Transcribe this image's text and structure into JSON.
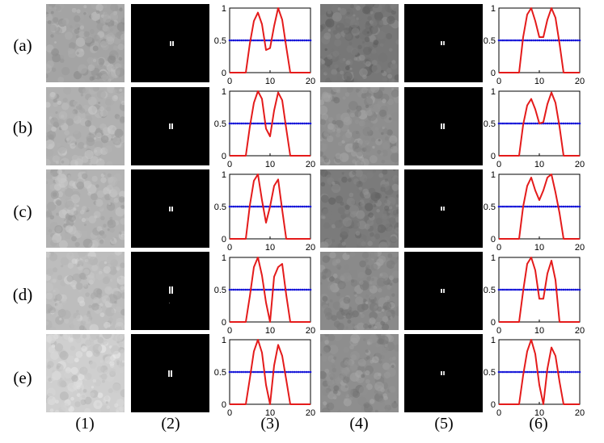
{
  "row_labels": [
    "(a)",
    "(b)",
    "(c)",
    "(d)",
    "(e)"
  ],
  "column_labels": [
    "(1)",
    "(2)",
    "(3)",
    "(4)",
    "(5)",
    "(6)"
  ],
  "colors": {
    "profile": "#e41b1b",
    "threshold": "#1515d8",
    "axes": "#000000"
  },
  "speckle_tones": {
    "column_1": [
      "#a4a4a4",
      "#b0b0b0",
      "#b2b2b2",
      "#bdbdbd",
      "#cfcfcf"
    ],
    "column_4": [
      "#777777",
      "#8e8e8e",
      "#7b7b7b",
      "#8a8a8a",
      "#8e8e8e"
    ]
  },
  "chart_data": [
    {
      "type": "line",
      "panel": "(a)(3)",
      "xlim": [
        0,
        20
      ],
      "ylim": [
        0,
        1
      ],
      "xticks": [
        "0",
        "10",
        "20"
      ],
      "yticks": [
        "0",
        "0.5",
        "1"
      ],
      "series": [
        {
          "x": [
            0,
            1,
            2,
            3,
            4,
            5,
            6,
            7,
            8,
            9,
            10,
            11,
            12,
            13,
            14,
            15,
            16,
            17,
            18,
            19,
            20
          ],
          "y": [
            0,
            0,
            0,
            0,
            0,
            0.45,
            0.8,
            0.93,
            0.75,
            0.35,
            0.38,
            0.72,
            1.0,
            0.82,
            0.4,
            0,
            0,
            0,
            0,
            0,
            0
          ]
        },
        {
          "x": [
            0,
            20
          ],
          "y": [
            0.5,
            0.5
          ]
        }
      ]
    },
    {
      "type": "line",
      "panel": "(a)(6)",
      "xlim": [
        0,
        20
      ],
      "ylim": [
        0,
        1
      ],
      "xticks": [
        "0",
        "10",
        "20"
      ],
      "yticks": [
        "0",
        "0.5",
        "1"
      ],
      "series": [
        {
          "x": [
            0,
            1,
            2,
            3,
            4,
            5,
            6,
            7,
            8,
            9,
            10,
            11,
            12,
            13,
            14,
            15,
            16,
            17,
            18,
            19,
            20
          ],
          "y": [
            0,
            0,
            0,
            0,
            0,
            0,
            0.55,
            0.9,
            1.0,
            0.8,
            0.55,
            0.55,
            0.82,
            1.0,
            0.85,
            0.45,
            0,
            0,
            0,
            0,
            0
          ]
        },
        {
          "x": [
            0,
            20
          ],
          "y": [
            0.5,
            0.5
          ]
        }
      ]
    },
    {
      "type": "line",
      "panel": "(b)(3)",
      "xlim": [
        0,
        20
      ],
      "ylim": [
        0,
        1
      ],
      "xticks": [
        "0",
        "10",
        "20"
      ],
      "yticks": [
        "0",
        "0.5",
        "1"
      ],
      "series": [
        {
          "x": [
            0,
            1,
            2,
            3,
            4,
            5,
            6,
            7,
            8,
            9,
            10,
            11,
            12,
            13,
            14,
            15,
            16,
            17,
            18,
            19,
            20
          ],
          "y": [
            0,
            0,
            0,
            0,
            0,
            0.45,
            0.82,
            1.0,
            0.88,
            0.42,
            0.3,
            0.7,
            0.98,
            0.86,
            0.42,
            0,
            0,
            0,
            0,
            0,
            0
          ]
        },
        {
          "x": [
            0,
            20
          ],
          "y": [
            0.5,
            0.5
          ]
        }
      ]
    },
    {
      "type": "line",
      "panel": "(b)(6)",
      "xlim": [
        0,
        20
      ],
      "ylim": [
        0,
        1
      ],
      "xticks": [
        "0",
        "10",
        "20"
      ],
      "yticks": [
        "0",
        "0.5",
        "1"
      ],
      "series": [
        {
          "x": [
            0,
            1,
            2,
            3,
            4,
            5,
            6,
            7,
            8,
            9,
            10,
            11,
            12,
            13,
            14,
            15,
            16,
            17,
            18,
            19,
            20
          ],
          "y": [
            0,
            0,
            0,
            0,
            0,
            0,
            0.48,
            0.78,
            0.88,
            0.72,
            0.5,
            0.52,
            0.8,
            0.98,
            0.82,
            0.45,
            0,
            0,
            0,
            0,
            0
          ]
        },
        {
          "x": [
            0,
            20
          ],
          "y": [
            0.5,
            0.5
          ]
        }
      ]
    },
    {
      "type": "line",
      "panel": "(c)(3)",
      "xlim": [
        0,
        20
      ],
      "ylim": [
        0,
        1
      ],
      "xticks": [
        "0",
        "10",
        "20"
      ],
      "yticks": [
        "0",
        "0.5",
        "1"
      ],
      "series": [
        {
          "x": [
            0,
            1,
            2,
            3,
            4,
            5,
            6,
            7,
            8,
            9,
            10,
            11,
            12,
            13,
            14,
            15,
            16,
            17,
            18,
            19,
            20
          ],
          "y": [
            0,
            0,
            0,
            0,
            0,
            0.52,
            0.9,
            1.0,
            0.6,
            0.25,
            0.5,
            0.82,
            0.92,
            0.45,
            0,
            0,
            0,
            0,
            0,
            0,
            0
          ]
        },
        {
          "x": [
            0,
            20
          ],
          "y": [
            0.5,
            0.5
          ]
        }
      ]
    },
    {
      "type": "line",
      "panel": "(c)(6)",
      "xlim": [
        0,
        20
      ],
      "ylim": [
        0,
        1
      ],
      "xticks": [
        "0",
        "10",
        "20"
      ],
      "yticks": [
        "0",
        "0.5",
        "1"
      ],
      "series": [
        {
          "x": [
            0,
            1,
            2,
            3,
            4,
            5,
            6,
            7,
            8,
            9,
            10,
            11,
            12,
            13,
            14,
            15,
            16,
            17,
            18,
            19,
            20
          ],
          "y": [
            0,
            0,
            0,
            0,
            0,
            0,
            0.5,
            0.82,
            0.95,
            0.75,
            0.6,
            0.75,
            0.95,
            1.0,
            0.72,
            0.4,
            0,
            0,
            0,
            0,
            0
          ]
        },
        {
          "x": [
            0,
            20
          ],
          "y": [
            0.5,
            0.5
          ]
        }
      ]
    },
    {
      "type": "line",
      "panel": "(d)(3)",
      "xlim": [
        0,
        20
      ],
      "ylim": [
        0,
        1
      ],
      "xticks": [
        "0",
        "10",
        "20"
      ],
      "yticks": [
        "0",
        "0.5",
        "1"
      ],
      "series": [
        {
          "x": [
            0,
            1,
            2,
            3,
            4,
            5,
            6,
            7,
            8,
            9,
            10,
            11,
            12,
            13,
            14,
            15,
            16,
            17,
            18,
            19,
            20
          ],
          "y": [
            0,
            0,
            0,
            0,
            0,
            0.4,
            0.85,
            1.0,
            0.72,
            0.3,
            0,
            0.7,
            0.85,
            0.9,
            0.42,
            0,
            0,
            0,
            0,
            0,
            0
          ]
        },
        {
          "x": [
            0,
            20
          ],
          "y": [
            0.5,
            0.5
          ]
        }
      ]
    },
    {
      "type": "line",
      "panel": "(d)(6)",
      "xlim": [
        0,
        20
      ],
      "ylim": [
        0,
        1
      ],
      "xticks": [
        "0",
        "10",
        "20"
      ],
      "yticks": [
        "0",
        "0.5",
        "1"
      ],
      "series": [
        {
          "x": [
            0,
            1,
            2,
            3,
            4,
            5,
            6,
            7,
            8,
            9,
            10,
            11,
            12,
            13,
            14,
            15,
            16,
            17,
            18,
            19,
            20
          ],
          "y": [
            0,
            0,
            0,
            0,
            0,
            0,
            0.48,
            0.9,
            1.0,
            0.8,
            0.36,
            0.36,
            0.75,
            0.95,
            0.65,
            0,
            0,
            0,
            0,
            0,
            0
          ]
        },
        {
          "x": [
            0,
            20
          ],
          "y": [
            0.5,
            0.5
          ]
        }
      ]
    },
    {
      "type": "line",
      "panel": "(e)(3)",
      "xlim": [
        0,
        20
      ],
      "ylim": [
        0,
        1
      ],
      "xticks": [
        "0",
        "10",
        "20"
      ],
      "yticks": [
        "0",
        "0.5",
        "1"
      ],
      "series": [
        {
          "x": [
            0,
            1,
            2,
            3,
            4,
            5,
            6,
            7,
            8,
            9,
            10,
            11,
            12,
            13,
            14,
            15,
            16,
            17,
            18,
            19,
            20
          ],
          "y": [
            0,
            0,
            0,
            0,
            0,
            0.4,
            0.82,
            1.0,
            0.8,
            0.3,
            0,
            0.6,
            0.92,
            0.75,
            0.38,
            0,
            0,
            0,
            0,
            0,
            0
          ]
        },
        {
          "x": [
            0,
            20
          ],
          "y": [
            0.5,
            0.5
          ]
        }
      ]
    },
    {
      "type": "line",
      "panel": "(e)(6)",
      "xlim": [
        0,
        20
      ],
      "ylim": [
        0,
        1
      ],
      "xticks": [
        "0",
        "10",
        "20"
      ],
      "yticks": [
        "0",
        "0.5",
        "1"
      ],
      "series": [
        {
          "x": [
            0,
            1,
            2,
            3,
            4,
            5,
            6,
            7,
            8,
            9,
            10,
            11,
            12,
            13,
            14,
            15,
            16,
            17,
            18,
            19,
            20
          ],
          "y": [
            0,
            0,
            0,
            0,
            0,
            0,
            0.45,
            0.82,
            1.0,
            0.78,
            0.3,
            0,
            0.55,
            0.88,
            0.75,
            0.35,
            0,
            0,
            0,
            0,
            0
          ]
        },
        {
          "x": [
            0,
            20
          ],
          "y": [
            0.5,
            0.5
          ]
        }
      ]
    }
  ]
}
